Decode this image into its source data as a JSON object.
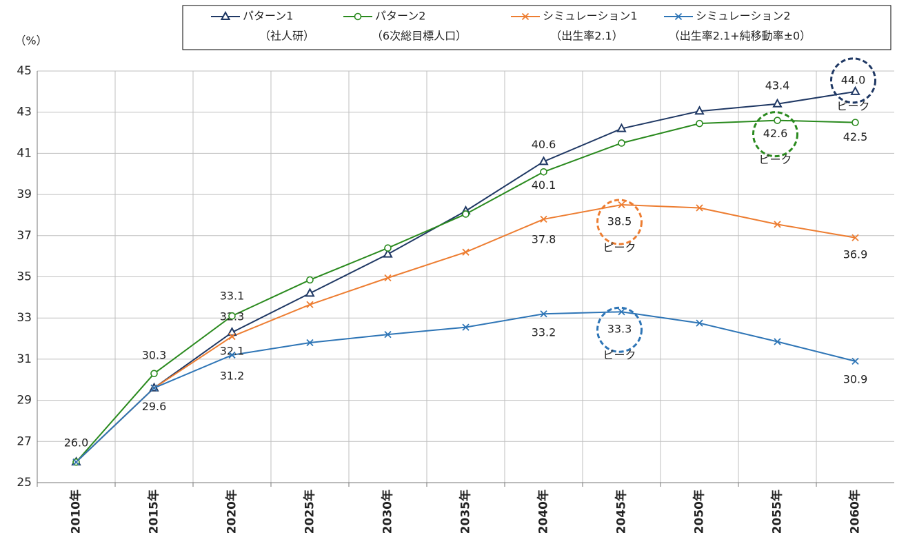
{
  "chart_data": {
    "type": "line",
    "y_label": "（%）",
    "categories": [
      "2010年",
      "2015年",
      "2020年",
      "2025年",
      "2030年",
      "2035年",
      "2040年",
      "2045年",
      "2050年",
      "2055年",
      "2060年"
    ],
    "ylim": [
      25,
      45
    ],
    "yticks": [
      25,
      27,
      29,
      31,
      33,
      35,
      37,
      39,
      41,
      43,
      45
    ],
    "grid": true,
    "peak_color": "#ff0000",
    "series": [
      {
        "name": "パターン1",
        "sub": "（社人研）",
        "color": "#1f3864",
        "marker": "triangle",
        "values": [
          26.0,
          29.6,
          32.3,
          34.2,
          36.1,
          38.2,
          40.6,
          42.2,
          43.05,
          43.4,
          44.0
        ],
        "value_labels": [
          "26.0",
          null,
          "32.3",
          null,
          null,
          null,
          "40.6",
          null,
          null,
          "43.4",
          "44.0"
        ],
        "peak": "ピーク"
      },
      {
        "name": "パターン2",
        "sub": "（6次総目標人口）",
        "color": "#2a8a1e",
        "marker": "circle",
        "values": [
          26.0,
          30.3,
          33.1,
          34.85,
          36.4,
          38.05,
          40.1,
          41.5,
          42.45,
          42.6,
          42.5
        ],
        "value_labels": [
          null,
          "30.3",
          "33.1",
          null,
          null,
          null,
          "40.1",
          null,
          null,
          "42.6",
          "42.5"
        ],
        "peak": "ピーク"
      },
      {
        "name": "シミュレーション1",
        "sub": "（出生率2.1）",
        "color": "#ed7d31",
        "marker": "x",
        "values": [
          26.0,
          29.6,
          32.1,
          33.65,
          34.95,
          36.2,
          37.8,
          38.5,
          38.35,
          37.55,
          36.9
        ],
        "value_labels": [
          null,
          null,
          "32.1",
          null,
          null,
          null,
          "37.8",
          "38.5",
          null,
          null,
          "36.9"
        ],
        "peak": "ピーク"
      },
      {
        "name": "シミュレーション2",
        "sub": "（出生率2.1+純移動率±0）",
        "color": "#2e75b6",
        "marker": "x",
        "values": [
          26.0,
          29.6,
          31.2,
          31.8,
          32.2,
          32.55,
          33.2,
          33.3,
          32.75,
          31.85,
          30.9
        ],
        "value_labels": [
          null,
          "29.6",
          "31.2",
          null,
          null,
          null,
          "33.2",
          "33.3",
          null,
          null,
          "30.9"
        ],
        "peak": "ピーク"
      }
    ]
  }
}
